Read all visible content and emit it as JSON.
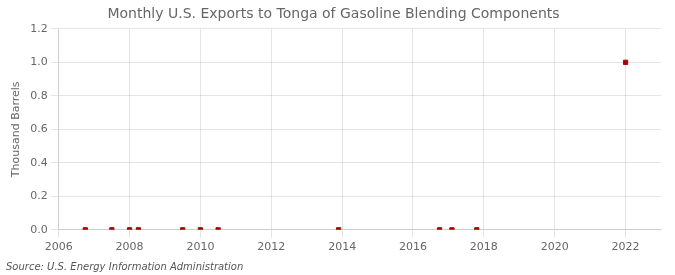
{
  "chart_data": {
    "type": "scatter",
    "title": "Monthly U.S. Exports to Tonga of Gasoline Blending Components",
    "ylabel": "Thousand Barrels",
    "annotations": [
      "Source: U.S. Energy Information Administration"
    ],
    "x": [
      2006.75,
      2007.5,
      2008.0,
      2008.25,
      2009.5,
      2010.0,
      2010.5,
      2013.9,
      2016.75,
      2017.1,
      2017.8,
      2022.0
    ],
    "values": [
      0.0,
      0.0,
      0.0,
      0.0,
      0.0,
      0.0,
      0.0,
      0.0,
      0.0,
      0.0,
      0.0,
      1.0
    ],
    "color": "#aa0000",
    "marker": "square",
    "xlim": [
      2006,
      2023
    ],
    "xticks": [
      2006,
      2008,
      2010,
      2012,
      2014,
      2016,
      2018,
      2020,
      2022
    ],
    "ylim": [
      0.0,
      1.2
    ],
    "yticks": [
      {
        "value": 0.0,
        "label": "0.0"
      },
      0.2,
      0.4,
      0.6,
      0.8,
      {
        "value": 1.0,
        "label": "1.0"
      },
      1.2
    ],
    "grid": true
  }
}
